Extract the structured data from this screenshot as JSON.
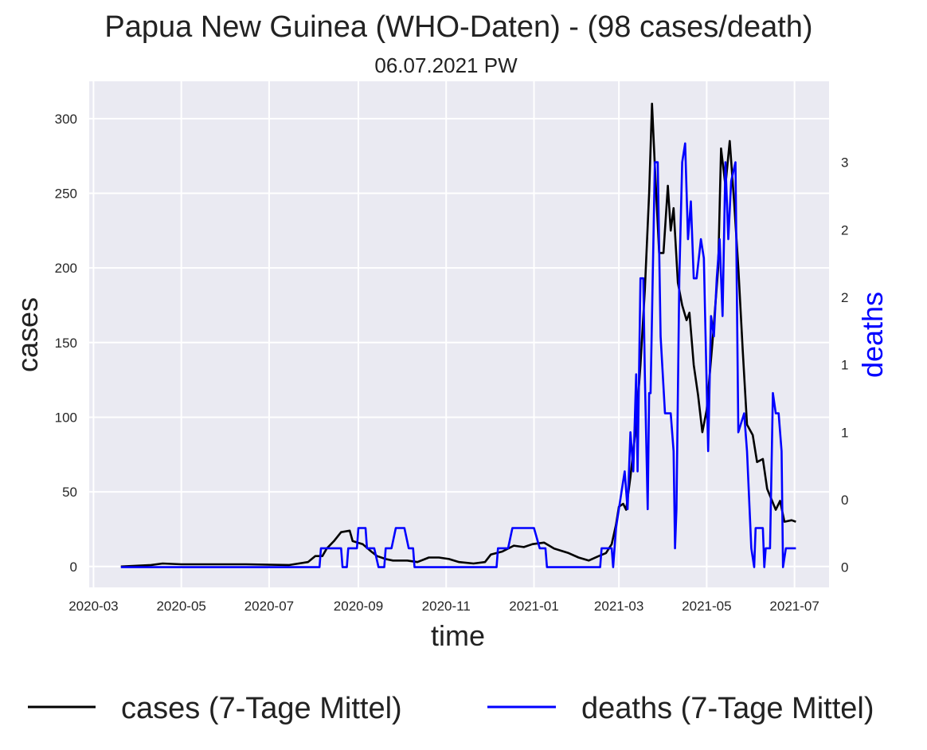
{
  "chart_data": {
    "type": "line",
    "title": "Papua New Guinea (WHO-Daten) - (98 cases/death)",
    "subtitle": "06.07.2021 PW",
    "xlabel": "time",
    "ylabel_left": "cases",
    "ylabel_right": "deaths",
    "x_ticks": [
      "2020-03",
      "2020-05",
      "2020-07",
      "2020-09",
      "2020-11",
      "2021-01",
      "2021-03",
      "2021-05",
      "2021-07"
    ],
    "y_left_ticks": [
      "0",
      "50",
      "100",
      "150",
      "200",
      "250",
      "300"
    ],
    "y_right_ticks": [
      "0",
      "0",
      "1",
      "1",
      "2",
      "2",
      "3"
    ],
    "y_left_range": [
      -14,
      325
    ],
    "y_right_range": [
      -0.15,
      3.6
    ],
    "x_range": [
      "2020-02-27",
      "2021-07-25"
    ],
    "grid": true,
    "legend_position": "bottom",
    "series": [
      {
        "name": "cases (7-Tage Mittel)",
        "axis": "left",
        "color": "#000000",
        "points": [
          [
            "2020-03-20",
            0
          ],
          [
            "2020-04-10",
            1
          ],
          [
            "2020-04-18",
            2
          ],
          [
            "2020-05-01",
            1.5
          ],
          [
            "2020-06-15",
            1.5
          ],
          [
            "2020-07-15",
            1
          ],
          [
            "2020-07-28",
            3
          ],
          [
            "2020-08-02",
            7
          ],
          [
            "2020-08-07",
            7
          ],
          [
            "2020-08-10",
            12
          ],
          [
            "2020-08-15",
            17
          ],
          [
            "2020-08-20",
            23
          ],
          [
            "2020-08-26",
            24
          ],
          [
            "2020-08-28",
            17
          ],
          [
            "2020-09-04",
            15
          ],
          [
            "2020-09-10",
            10
          ],
          [
            "2020-09-14",
            7
          ],
          [
            "2020-09-20",
            5
          ],
          [
            "2020-09-25",
            4
          ],
          [
            "2020-10-05",
            4
          ],
          [
            "2020-10-12",
            3
          ],
          [
            "2020-10-20",
            6
          ],
          [
            "2020-10-27",
            6
          ],
          [
            "2020-11-03",
            5
          ],
          [
            "2020-11-10",
            3
          ],
          [
            "2020-11-20",
            2
          ],
          [
            "2020-11-28",
            3
          ],
          [
            "2020-12-02",
            8
          ],
          [
            "2020-12-10",
            10
          ],
          [
            "2020-12-18",
            14
          ],
          [
            "2020-12-25",
            13
          ],
          [
            "2020-12-31",
            15
          ],
          [
            "2021-01-08",
            16
          ],
          [
            "2021-01-15",
            12
          ],
          [
            "2021-01-25",
            9
          ],
          [
            "2021-02-01",
            6
          ],
          [
            "2021-02-08",
            4
          ],
          [
            "2021-02-15",
            7
          ],
          [
            "2021-02-20",
            9
          ],
          [
            "2021-02-24",
            15
          ],
          [
            "2021-02-27",
            28
          ],
          [
            "2021-03-01",
            40
          ],
          [
            "2021-03-04",
            42
          ],
          [
            "2021-03-06",
            38
          ],
          [
            "2021-03-09",
            60
          ],
          [
            "2021-03-13",
            95
          ],
          [
            "2021-03-16",
            135
          ],
          [
            "2021-03-19",
            185
          ],
          [
            "2021-03-22",
            250
          ],
          [
            "2021-03-24",
            310
          ],
          [
            "2021-03-26",
            268
          ],
          [
            "2021-03-29",
            210
          ],
          [
            "2021-04-01",
            210
          ],
          [
            "2021-04-04",
            255
          ],
          [
            "2021-04-06",
            225
          ],
          [
            "2021-04-08",
            240
          ],
          [
            "2021-04-11",
            190
          ],
          [
            "2021-04-14",
            175
          ],
          [
            "2021-04-17",
            165
          ],
          [
            "2021-04-19",
            170
          ],
          [
            "2021-04-22",
            135
          ],
          [
            "2021-04-25",
            115
          ],
          [
            "2021-04-28",
            90
          ],
          [
            "2021-05-01",
            105
          ],
          [
            "2021-05-05",
            150
          ],
          [
            "2021-05-09",
            200
          ],
          [
            "2021-05-11",
            280
          ],
          [
            "2021-05-14",
            255
          ],
          [
            "2021-05-17",
            285
          ],
          [
            "2021-05-20",
            245
          ],
          [
            "2021-05-23",
            200
          ],
          [
            "2021-05-26",
            145
          ],
          [
            "2021-05-29",
            95
          ],
          [
            "2021-06-02",
            88
          ],
          [
            "2021-06-05",
            70
          ],
          [
            "2021-06-09",
            72
          ],
          [
            "2021-06-12",
            52
          ],
          [
            "2021-06-15",
            45
          ],
          [
            "2021-06-18",
            38
          ],
          [
            "2021-06-21",
            44
          ],
          [
            "2021-06-24",
            30
          ],
          [
            "2021-06-29",
            31
          ],
          [
            "2021-07-02",
            30
          ]
        ]
      },
      {
        "name": "deaths (7-Tage Mittel)",
        "axis": "right",
        "color": "#0000ff",
        "points": [
          [
            "2020-03-20",
            0
          ],
          [
            "2020-08-05",
            0
          ],
          [
            "2020-08-06",
            0.14
          ],
          [
            "2020-08-20",
            0.14
          ],
          [
            "2020-08-21",
            0
          ],
          [
            "2020-08-24",
            0
          ],
          [
            "2020-08-25",
            0.14
          ],
          [
            "2020-08-31",
            0.14
          ],
          [
            "2020-09-01",
            0.29
          ],
          [
            "2020-09-06",
            0.29
          ],
          [
            "2020-09-07",
            0.14
          ],
          [
            "2020-09-12",
            0.14
          ],
          [
            "2020-09-15",
            0
          ],
          [
            "2020-09-19",
            0
          ],
          [
            "2020-09-20",
            0.14
          ],
          [
            "2020-09-24",
            0.14
          ],
          [
            "2020-09-27",
            0.29
          ],
          [
            "2020-10-03",
            0.29
          ],
          [
            "2020-10-06",
            0.14
          ],
          [
            "2020-10-09",
            0.14
          ],
          [
            "2020-10-10",
            0
          ],
          [
            "2020-12-06",
            0
          ],
          [
            "2020-12-07",
            0.14
          ],
          [
            "2020-12-14",
            0.14
          ],
          [
            "2020-12-17",
            0.29
          ],
          [
            "2021-01-01",
            0.29
          ],
          [
            "2021-01-05",
            0.14
          ],
          [
            "2021-01-09",
            0.14
          ],
          [
            "2021-01-10",
            0
          ],
          [
            "2021-02-16",
            0
          ],
          [
            "2021-02-17",
            0.14
          ],
          [
            "2021-02-24",
            0.14
          ],
          [
            "2021-02-25",
            0
          ],
          [
            "2021-02-27",
            0.29
          ],
          [
            "2021-03-03",
            0.57
          ],
          [
            "2021-03-05",
            0.71
          ],
          [
            "2021-03-07",
            0.43
          ],
          [
            "2021-03-09",
            1.0
          ],
          [
            "2021-03-11",
            0.71
          ],
          [
            "2021-03-13",
            1.43
          ],
          [
            "2021-03-14",
            0.71
          ],
          [
            "2021-03-16",
            2.14
          ],
          [
            "2021-03-18",
            2.14
          ],
          [
            "2021-03-19",
            1.43
          ],
          [
            "2021-03-21",
            0.43
          ],
          [
            "2021-03-22",
            1.29
          ],
          [
            "2021-03-23",
            1.29
          ],
          [
            "2021-03-26",
            3.0
          ],
          [
            "2021-03-28",
            3.0
          ],
          [
            "2021-03-30",
            1.71
          ],
          [
            "2021-04-02",
            1.14
          ],
          [
            "2021-04-04",
            1.14
          ],
          [
            "2021-04-06",
            1.14
          ],
          [
            "2021-04-08",
            0.86
          ],
          [
            "2021-04-09",
            0.14
          ],
          [
            "2021-04-10",
            0.43
          ],
          [
            "2021-04-12",
            2.14
          ],
          [
            "2021-04-14",
            3.0
          ],
          [
            "2021-04-16",
            3.14
          ],
          [
            "2021-04-18",
            2.43
          ],
          [
            "2021-04-20",
            2.71
          ],
          [
            "2021-04-22",
            2.14
          ],
          [
            "2021-04-24",
            2.14
          ],
          [
            "2021-04-27",
            2.43
          ],
          [
            "2021-04-29",
            2.29
          ],
          [
            "2021-05-02",
            0.86
          ],
          [
            "2021-05-04",
            1.86
          ],
          [
            "2021-05-06",
            1.71
          ],
          [
            "2021-05-08",
            2.14
          ],
          [
            "2021-05-10",
            2.43
          ],
          [
            "2021-05-12",
            1.86
          ],
          [
            "2021-05-14",
            3.0
          ],
          [
            "2021-05-16",
            2.43
          ],
          [
            "2021-05-18",
            2.86
          ],
          [
            "2021-05-21",
            3.0
          ],
          [
            "2021-05-23",
            1.0
          ],
          [
            "2021-05-27",
            1.14
          ],
          [
            "2021-05-29",
            0.86
          ],
          [
            "2021-06-01",
            0.14
          ],
          [
            "2021-06-03",
            0
          ],
          [
            "2021-06-04",
            0.29
          ],
          [
            "2021-06-09",
            0.29
          ],
          [
            "2021-06-10",
            0
          ],
          [
            "2021-06-11",
            0.14
          ],
          [
            "2021-06-14",
            0.14
          ],
          [
            "2021-06-16",
            1.29
          ],
          [
            "2021-06-18",
            1.14
          ],
          [
            "2021-06-20",
            1.14
          ],
          [
            "2021-06-22",
            0.86
          ],
          [
            "2021-06-23",
            0
          ],
          [
            "2021-06-25",
            0.14
          ],
          [
            "2021-07-02",
            0.14
          ]
        ]
      }
    ]
  }
}
